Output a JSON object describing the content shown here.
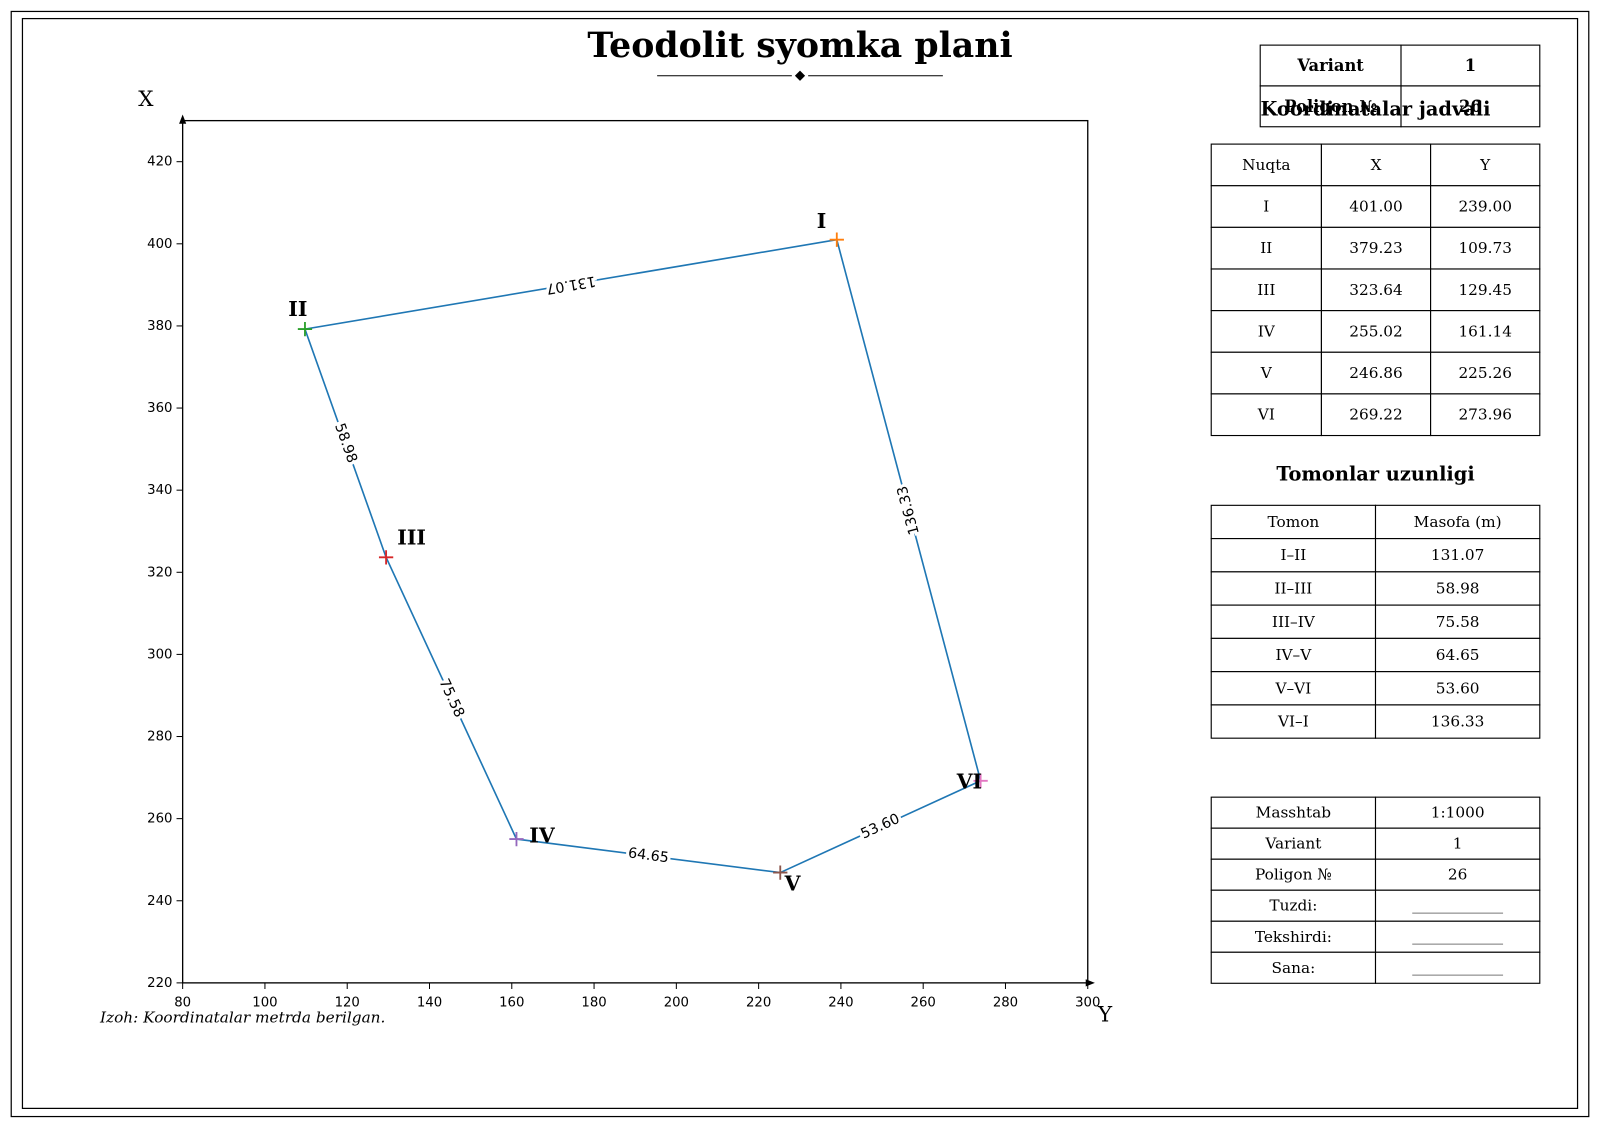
{
  "chart_data": {
    "type": "line",
    "title": "Teodolit syomka plani",
    "x_label": "Y",
    "y_label": "X",
    "point_labels": [
      "I",
      "II",
      "III",
      "IV",
      "V",
      "VI"
    ],
    "x": [
      239.0,
      109.73,
      129.45,
      161.14,
      225.26,
      273.96
    ],
    "y": [
      401.0,
      379.23,
      323.64,
      255.02,
      246.86,
      269.22
    ],
    "point_colors": [
      "#ff7f0e",
      "#2ca02c",
      "#d62728",
      "#9467bd",
      "#8c564b",
      "#e377c2"
    ],
    "color": "#1f77b4",
    "closed": true,
    "segments": {
      "values": [
        131.07,
        58.98,
        75.58,
        64.65,
        53.6,
        136.33
      ],
      "value_labels": [
        "131.07",
        "58.98",
        "75.58",
        "64.65",
        "53.60",
        "136.33"
      ]
    },
    "xlim": [
      80,
      300
    ],
    "ylim": [
      220,
      430
    ],
    "xticks": [
      80,
      100,
      120,
      140,
      160,
      180,
      200,
      220,
      240,
      260,
      280,
      300
    ],
    "yticks": [
      220,
      240,
      260,
      280,
      300,
      320,
      340,
      360,
      380,
      400,
      420
    ],
    "note": "Izoh: Koordinatalar metrda berilgan."
  },
  "header_table": {
    "rows": [
      [
        "Variant",
        "1"
      ],
      [
        "Poligon №",
        "26"
      ]
    ]
  },
  "coordinates_table": {
    "title": "Koordinatalar jadvali",
    "columns": [
      "Nuqta",
      "X",
      "Y"
    ],
    "rows": [
      [
        "I",
        "401.00",
        "239.00"
      ],
      [
        "II",
        "379.23",
        "109.73"
      ],
      [
        "III",
        "323.64",
        "129.45"
      ],
      [
        "IV",
        "255.02",
        "161.14"
      ],
      [
        "V",
        "246.86",
        "225.26"
      ],
      [
        "VI",
        "269.22",
        "273.96"
      ]
    ]
  },
  "sides_table": {
    "title": "Tomonlar uzunligi",
    "columns": [
      "Tomon",
      "Masofa (m)"
    ],
    "rows": [
      [
        "I–II",
        "131.07"
      ],
      [
        "II–III",
        "58.98"
      ],
      [
        "III–IV",
        "75.58"
      ],
      [
        "IV–V",
        "64.65"
      ],
      [
        "V–VI",
        "53.60"
      ],
      [
        "VI–I",
        "136.33"
      ]
    ]
  },
  "info_table": {
    "rows": [
      [
        "Masshtab",
        "1:1000"
      ],
      [
        "Variant",
        "1"
      ],
      [
        "Poligon №",
        "26"
      ],
      [
        "Tuzdi:"
      ],
      [
        "Tekshirdi:"
      ],
      [
        "Sana:"
      ]
    ]
  }
}
